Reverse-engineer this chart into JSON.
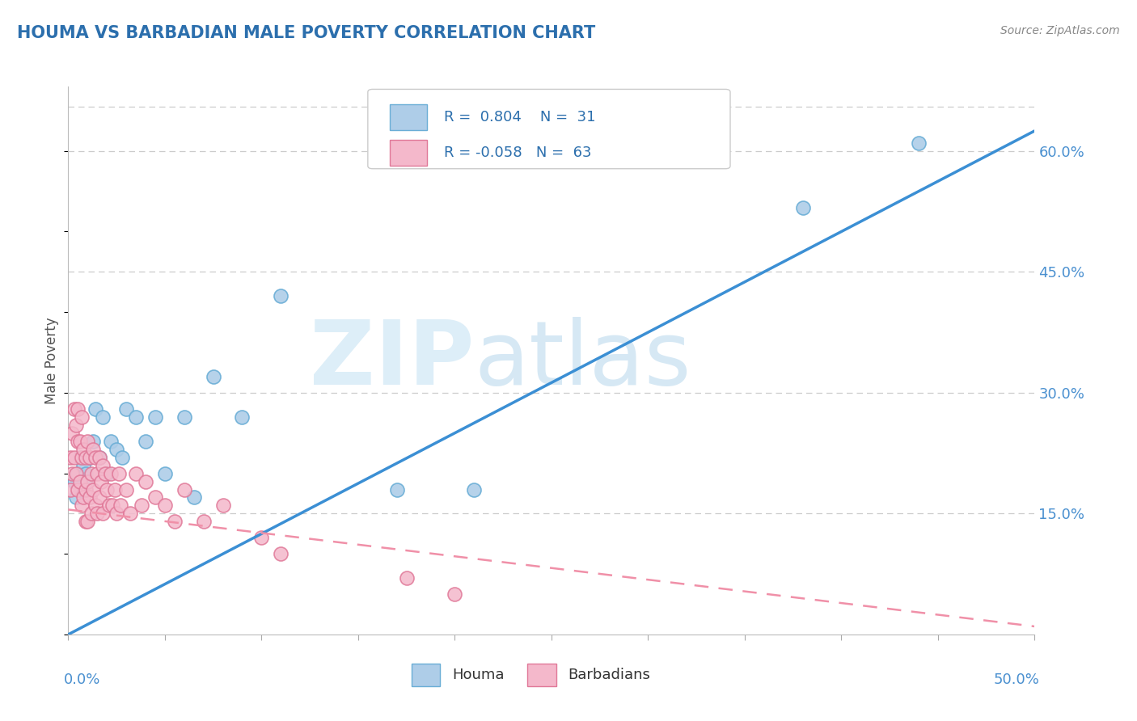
{
  "title": "HOUMA VS BARBADIAN MALE POVERTY CORRELATION CHART",
  "source": "Source: ZipAtlas.com",
  "ylabel": "Male Poverty",
  "xlim": [
    0.0,
    0.5
  ],
  "ylim": [
    0.0,
    0.68
  ],
  "right_yticks": [
    0.15,
    0.3,
    0.45,
    0.6
  ],
  "right_yticklabels": [
    "15.0%",
    "30.0%",
    "45.0%",
    "60.0%"
  ],
  "houma_R": 0.804,
  "houma_N": 31,
  "barbadian_R": -0.058,
  "barbadian_N": 63,
  "houma_color": "#aecde8",
  "houma_edge_color": "#6aaed6",
  "barbadian_color": "#f4b8cb",
  "barbadian_edge_color": "#e07898",
  "houma_line_color": "#3b8fd4",
  "barbadian_line_color": "#f090a8",
  "legend_label_houma": "Houma",
  "legend_label_barbadian": "Barbadians",
  "houma_line_x0": 0.0,
  "houma_line_y0": 0.0,
  "houma_line_x1": 0.5,
  "houma_line_y1": 0.625,
  "barbadian_line_x0": 0.0,
  "barbadian_line_y0": 0.155,
  "barbadian_line_x1": 0.5,
  "barbadian_line_y1": 0.01,
  "houma_points_x": [
    0.003,
    0.004,
    0.005,
    0.006,
    0.007,
    0.008,
    0.009,
    0.01,
    0.011,
    0.013,
    0.014,
    0.016,
    0.018,
    0.02,
    0.022,
    0.025,
    0.028,
    0.03,
    0.035,
    0.04,
    0.045,
    0.05,
    0.06,
    0.065,
    0.075,
    0.09,
    0.11,
    0.17,
    0.21,
    0.38,
    0.44
  ],
  "houma_points_y": [
    0.19,
    0.17,
    0.2,
    0.22,
    0.18,
    0.21,
    0.2,
    0.19,
    0.22,
    0.24,
    0.28,
    0.22,
    0.27,
    0.2,
    0.24,
    0.23,
    0.22,
    0.28,
    0.27,
    0.24,
    0.27,
    0.2,
    0.27,
    0.17,
    0.32,
    0.27,
    0.42,
    0.18,
    0.18,
    0.53,
    0.61
  ],
  "barbadian_points_x": [
    0.001,
    0.001,
    0.002,
    0.002,
    0.003,
    0.003,
    0.004,
    0.004,
    0.005,
    0.005,
    0.005,
    0.006,
    0.006,
    0.007,
    0.007,
    0.007,
    0.008,
    0.008,
    0.009,
    0.009,
    0.009,
    0.01,
    0.01,
    0.01,
    0.011,
    0.011,
    0.012,
    0.012,
    0.013,
    0.013,
    0.014,
    0.014,
    0.015,
    0.015,
    0.016,
    0.016,
    0.017,
    0.018,
    0.018,
    0.019,
    0.02,
    0.021,
    0.022,
    0.023,
    0.024,
    0.025,
    0.026,
    0.027,
    0.03,
    0.032,
    0.035,
    0.038,
    0.04,
    0.045,
    0.05,
    0.055,
    0.06,
    0.07,
    0.08,
    0.1,
    0.11,
    0.175,
    0.2
  ],
  "barbadian_points_y": [
    0.22,
    0.18,
    0.25,
    0.2,
    0.28,
    0.22,
    0.26,
    0.2,
    0.28,
    0.24,
    0.18,
    0.24,
    0.19,
    0.27,
    0.22,
    0.16,
    0.23,
    0.17,
    0.22,
    0.18,
    0.14,
    0.24,
    0.19,
    0.14,
    0.22,
    0.17,
    0.2,
    0.15,
    0.23,
    0.18,
    0.22,
    0.16,
    0.2,
    0.15,
    0.22,
    0.17,
    0.19,
    0.21,
    0.15,
    0.2,
    0.18,
    0.16,
    0.2,
    0.16,
    0.18,
    0.15,
    0.2,
    0.16,
    0.18,
    0.15,
    0.2,
    0.16,
    0.19,
    0.17,
    0.16,
    0.14,
    0.18,
    0.14,
    0.16,
    0.12,
    0.1,
    0.07,
    0.05
  ]
}
